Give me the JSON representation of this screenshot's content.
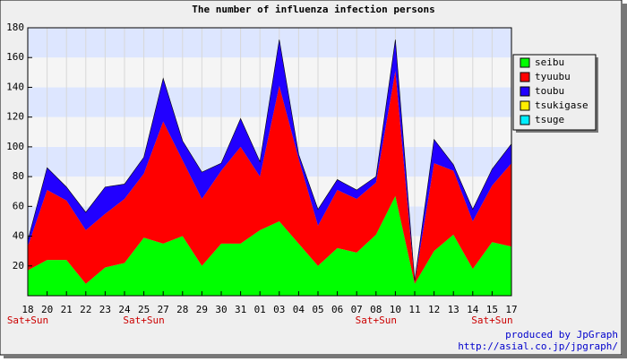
{
  "chart_data": {
    "type": "stacked_area",
    "title": "The number of influenza infection persons",
    "categories": [
      "18",
      "20",
      "21",
      "22",
      "23",
      "24",
      "25",
      "27",
      "28",
      "29",
      "30",
      "31",
      "01",
      "03",
      "04",
      "05",
      "06",
      "07",
      "08",
      "10",
      "11",
      "12",
      "13",
      "14",
      "15",
      "17"
    ],
    "x_sublabels": [
      "Sat+Sun",
      null,
      null,
      null,
      null,
      null,
      "Sat+Sun",
      null,
      null,
      null,
      null,
      null,
      null,
      null,
      null,
      null,
      null,
      null,
      "Sat+Sun",
      null,
      null,
      null,
      null,
      null,
      "Sat+Sun",
      null
    ],
    "series": [
      {
        "name": "seibu",
        "color": "#00ff00",
        "values": [
          17,
          24,
          24,
          8,
          19,
          22,
          39,
          35,
          40,
          20,
          35,
          35,
          44,
          50,
          35,
          20,
          32,
          29,
          41,
          67,
          8,
          30,
          41,
          18,
          36,
          33
        ]
      },
      {
        "name": "tyuubu",
        "color": "#ff0000",
        "values": [
          16,
          47,
          40,
          36,
          36,
          43,
          43,
          82,
          51,
          45,
          49,
          65,
          36,
          91,
          57,
          27,
          39,
          36,
          35,
          84,
          1,
          59,
          43,
          32,
          38,
          56
        ]
      },
      {
        "name": "toubu",
        "color": "#2200ff",
        "values": [
          4,
          15,
          9,
          12,
          18,
          10,
          11,
          29,
          13,
          18,
          5,
          19,
          10,
          31,
          3,
          11,
          7,
          6,
          4,
          21,
          1,
          16,
          4,
          8,
          11,
          13
        ]
      },
      {
        "name": "tsukigase",
        "color": "#ffee00",
        "values": [
          0,
          0,
          0,
          0,
          0,
          0,
          0,
          0,
          0,
          0,
          0,
          0,
          0,
          0,
          0,
          0,
          0,
          0,
          0,
          0,
          0,
          0,
          0,
          0,
          0,
          0
        ]
      },
      {
        "name": "tsuge",
        "color": "#00eeff",
        "values": [
          0,
          0,
          0,
          0,
          0,
          0,
          0,
          0,
          0,
          0,
          0,
          0,
          0,
          0,
          0,
          0,
          0,
          0,
          0,
          0,
          0,
          0,
          0,
          0,
          0,
          0
        ]
      }
    ],
    "ylim": [
      0,
      180
    ],
    "yticks": [
      20,
      40,
      60,
      80,
      100,
      120,
      140,
      160,
      180
    ],
    "grid": true,
    "band_colors": [
      "#f5f5f5",
      "#dde6ff"
    ],
    "legend": "right",
    "footer": [
      "produced by JpGraph",
      "http://asial.co.jp/jpgraph/"
    ]
  }
}
